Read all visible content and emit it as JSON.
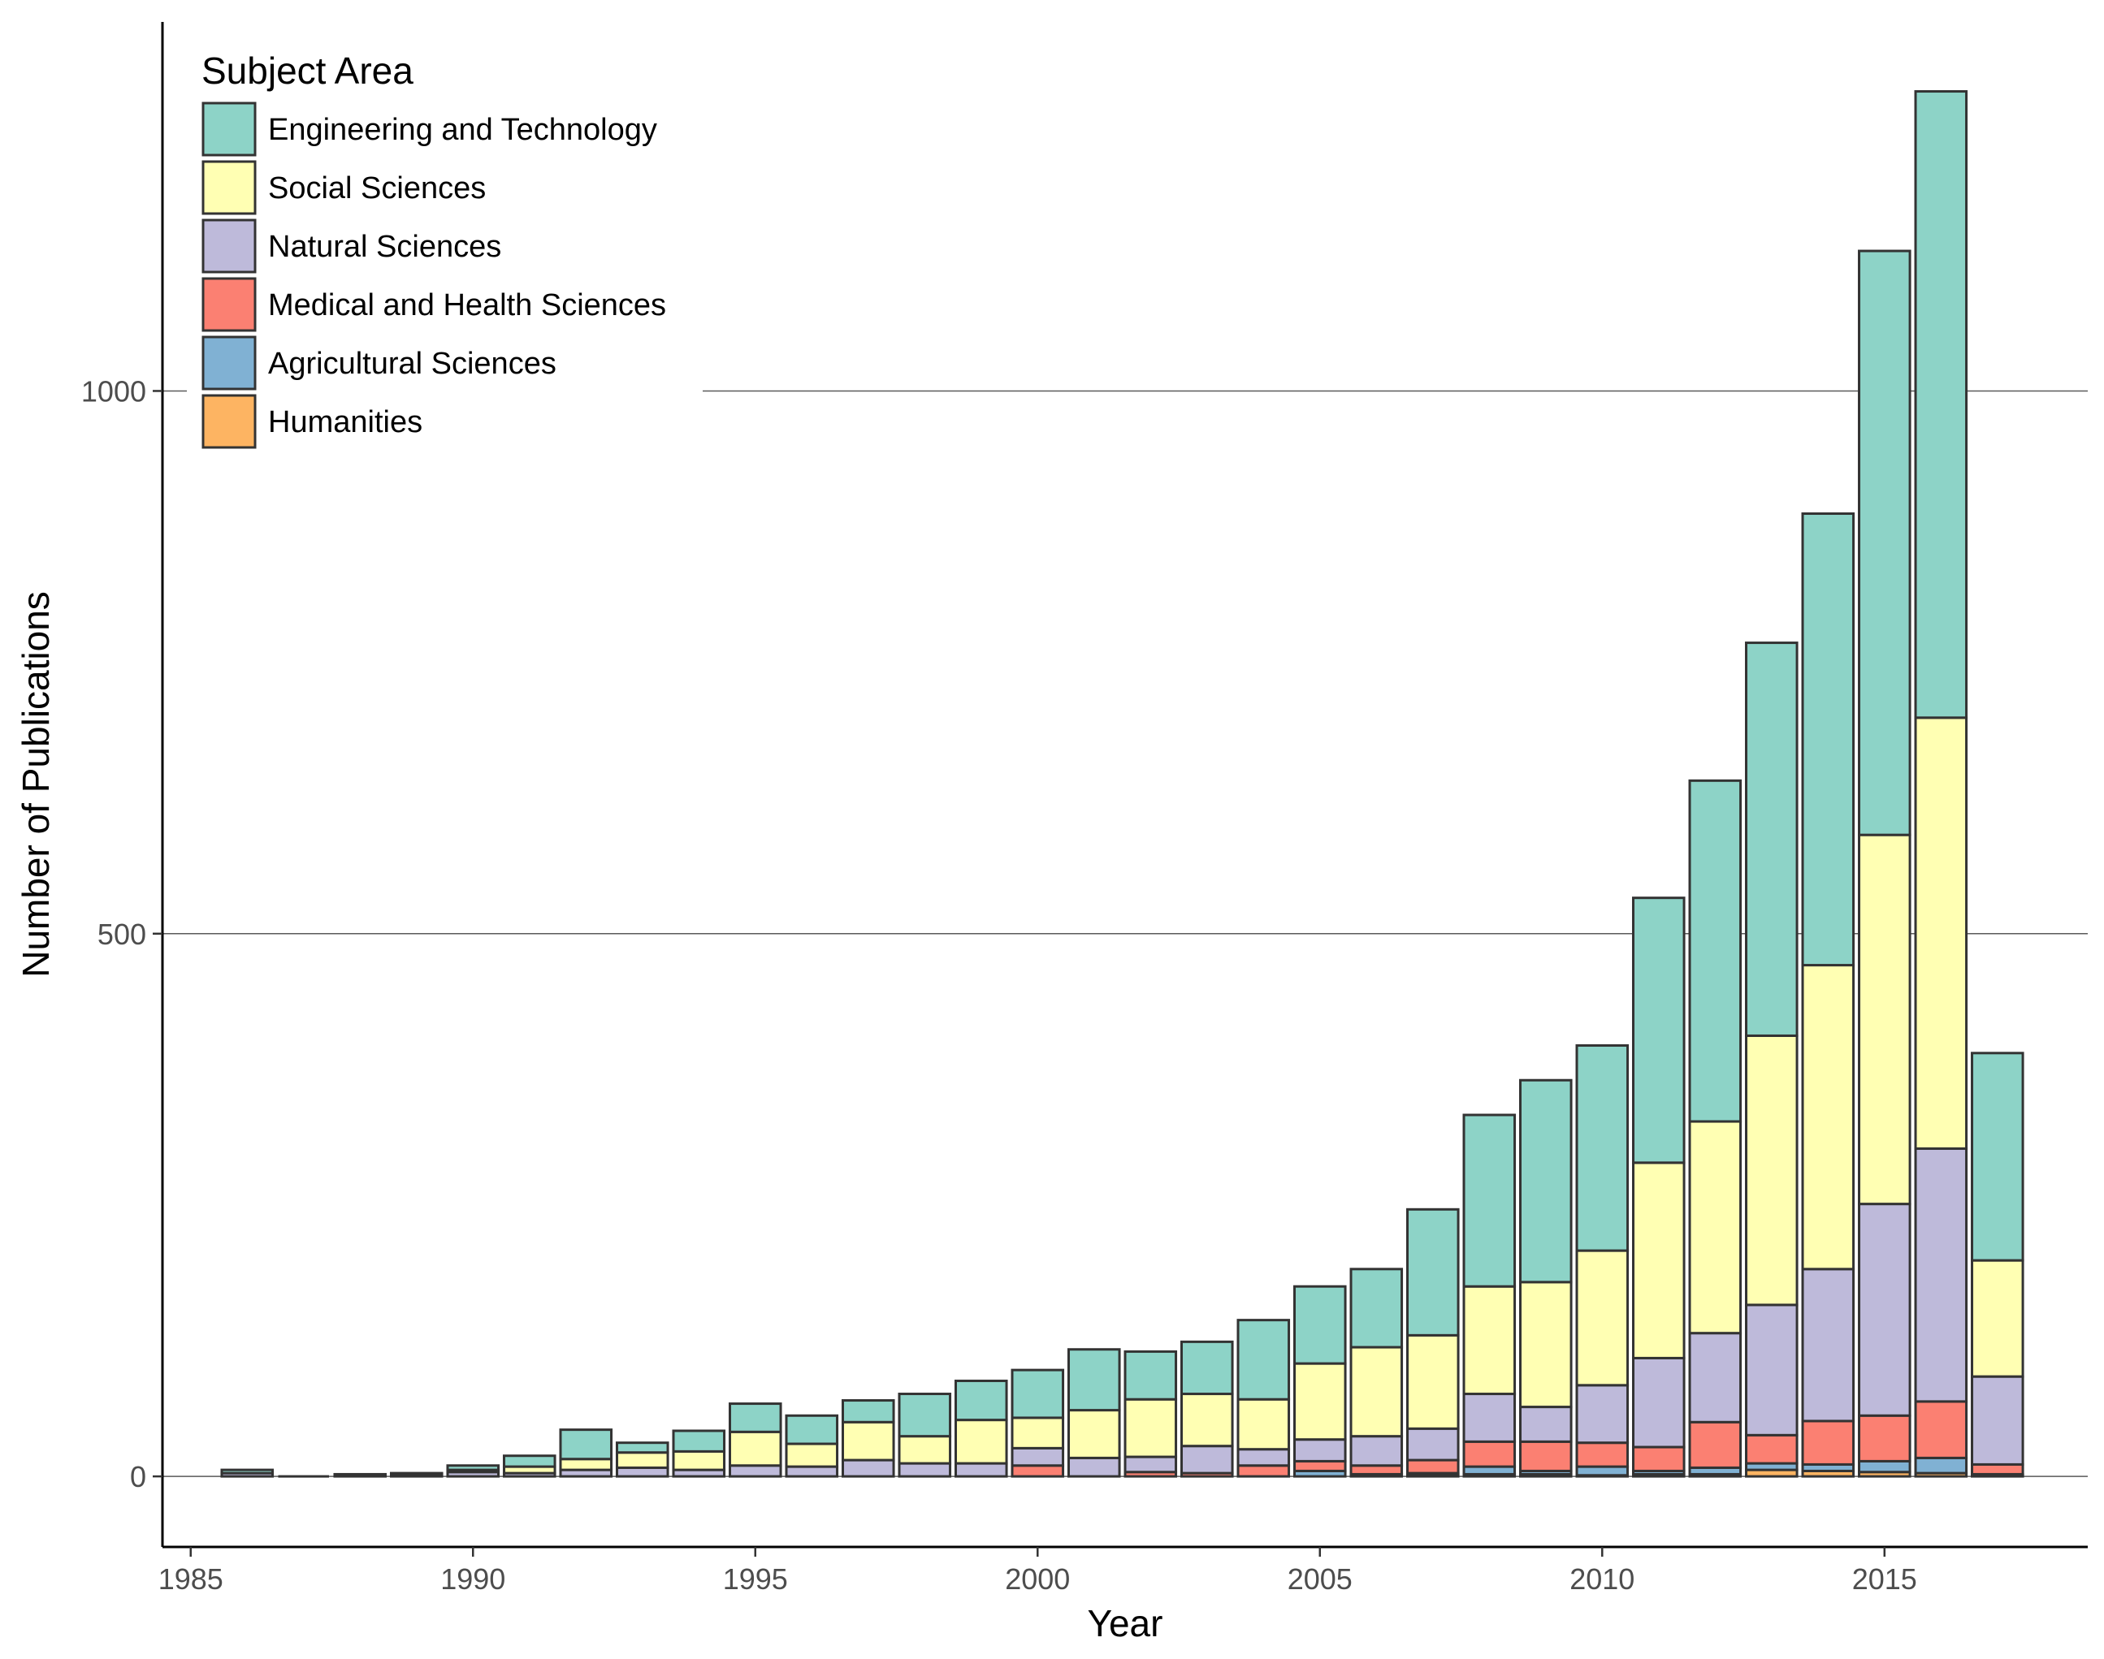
{
  "chart_data": {
    "type": "bar",
    "stacked": true,
    "xlabel": "Year",
    "ylabel": "Number of Publications",
    "xlim": [
      1984.5,
      2018.6
    ],
    "ylim": [
      -65,
      1340
    ],
    "x_ticks": [
      1985,
      1990,
      1995,
      2000,
      2005,
      2010,
      2015
    ],
    "y_ticks": [
      0,
      500,
      1000
    ],
    "grid": "horizontal major",
    "legend": {
      "title": "Subject Area",
      "placement": "top-left inside",
      "entries": [
        {
          "name": "Engineering and Technology",
          "color": "#8DD3C7"
        },
        {
          "name": "Social Sciences",
          "color": "#FFFFB3"
        },
        {
          "name": "Natural Sciences",
          "color": "#BEBADA"
        },
        {
          "name": "Medical and Health Sciences",
          "color": "#FB8072"
        },
        {
          "name": "Agricultural Sciences",
          "color": "#80B1D3"
        },
        {
          "name": "Humanities",
          "color": "#FDB462"
        }
      ]
    },
    "stack_order_bottom_to_top": [
      "Humanities",
      "Agricultural Sciences",
      "Medical and Health Sciences",
      "Natural Sciences",
      "Social Sciences",
      "Engineering and Technology"
    ],
    "years": [
      1986,
      1987,
      1988,
      1989,
      1990,
      1991,
      1992,
      1993,
      1994,
      1995,
      1996,
      1997,
      1998,
      1999,
      2000,
      2001,
      2002,
      2003,
      2004,
      2005,
      2006,
      2007,
      2008,
      2009,
      2010,
      2011,
      2012,
      2013,
      2014,
      2015,
      2016,
      2017
    ],
    "series": [
      {
        "name": "Humanities",
        "color": "#FDB462",
        "values": [
          0,
          0,
          0,
          0,
          0,
          0,
          0,
          0,
          0,
          0,
          0,
          0,
          0,
          0,
          0,
          0,
          0,
          0,
          0,
          0,
          0,
          1,
          2,
          2,
          1,
          2,
          2,
          6,
          5,
          4,
          3,
          1
        ]
      },
      {
        "name": "Agricultural Sciences",
        "color": "#80B1D3",
        "values": [
          0,
          0,
          0,
          0,
          0,
          0,
          0,
          0,
          0,
          0,
          0,
          0,
          0,
          0,
          0,
          0,
          0,
          0,
          0,
          5,
          2,
          2,
          7,
          3,
          8,
          3,
          6,
          6,
          6,
          10,
          14,
          1
        ]
      },
      {
        "name": "Medical and Health Sciences",
        "color": "#FB8072",
        "values": [
          0,
          0,
          0,
          0,
          0,
          0,
          0,
          0,
          0,
          0,
          0,
          0,
          0,
          0,
          10,
          0,
          4,
          3,
          10,
          9,
          8,
          12,
          23,
          27,
          22,
          22,
          42,
          26,
          40,
          42,
          52,
          9
        ]
      },
      {
        "name": "Natural Sciences",
        "color": "#BEBADA",
        "values": [
          3,
          0,
          1,
          2,
          4,
          3,
          6,
          8,
          6,
          10,
          9,
          15,
          12,
          12,
          16,
          17,
          14,
          25,
          15,
          20,
          27,
          29,
          44,
          32,
          53,
          82,
          82,
          120,
          140,
          195,
          233,
          81
        ]
      },
      {
        "name": "Social Sciences",
        "color": "#FFFFB3",
        "values": [
          0,
          0,
          0,
          0,
          2,
          6,
          10,
          14,
          17,
          31,
          21,
          35,
          25,
          40,
          28,
          44,
          53,
          48,
          46,
          70,
          82,
          86,
          99,
          115,
          124,
          180,
          195,
          248,
          280,
          340,
          397,
          107
        ]
      },
      {
        "name": "Engineering and Technology",
        "color": "#8DD3C7",
        "values": [
          3,
          0,
          1,
          1,
          4,
          10,
          27,
          9,
          19,
          26,
          26,
          20,
          39,
          36,
          44,
          56,
          44,
          48,
          73,
          71,
          72,
          116,
          158,
          186,
          189,
          244,
          314,
          362,
          416,
          538,
          577,
          191
        ]
      }
    ],
    "totals": [
      6,
      0,
      2,
      3,
      10,
      19,
      43,
      31,
      42,
      67,
      56,
      70,
      76,
      88,
      98,
      117,
      115,
      124,
      144,
      175,
      191,
      246,
      333,
      365,
      397,
      533,
      641,
      768,
      887,
      1129,
      1276,
      390
    ]
  }
}
